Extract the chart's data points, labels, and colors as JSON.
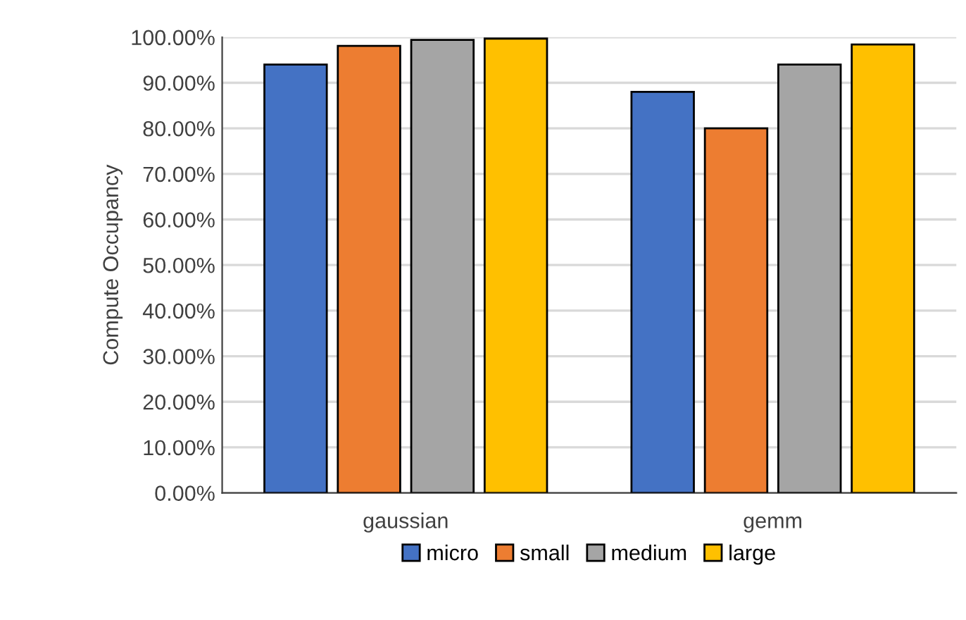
{
  "chart_data": {
    "type": "bar",
    "ylabel": "Compute Occupancy",
    "categories": [
      "gaussian",
      "gemm"
    ],
    "series": [
      {
        "name": "micro",
        "color": "#4472c4",
        "values": [
          0.94,
          0.88
        ]
      },
      {
        "name": "small",
        "color": "#ed7d31",
        "values": [
          0.981,
          0.8
        ]
      },
      {
        "name": "medium",
        "color": "#a5a5a5",
        "values": [
          0.994,
          0.94
        ]
      },
      {
        "name": "large",
        "color": "#ffc000",
        "values": [
          0.997,
          0.984
        ]
      }
    ],
    "ylim": [
      0,
      1
    ],
    "yticks": [
      {
        "value": 0,
        "label": "0.00%"
      },
      {
        "value": 0.1,
        "label": "10.00%"
      },
      {
        "value": 0.2,
        "label": "20.00%"
      },
      {
        "value": 0.3,
        "label": "30.00%"
      },
      {
        "value": 0.4,
        "label": "40.00%"
      },
      {
        "value": 0.5,
        "label": "50.00%"
      },
      {
        "value": 0.6,
        "label": "60.00%"
      },
      {
        "value": 0.7,
        "label": "70.00%"
      },
      {
        "value": 0.8,
        "label": "80.00%"
      },
      {
        "value": 0.9,
        "label": "90.00%"
      },
      {
        "value": 1,
        "label": "100.00%"
      }
    ],
    "grid": "y",
    "legend": "bottom"
  }
}
